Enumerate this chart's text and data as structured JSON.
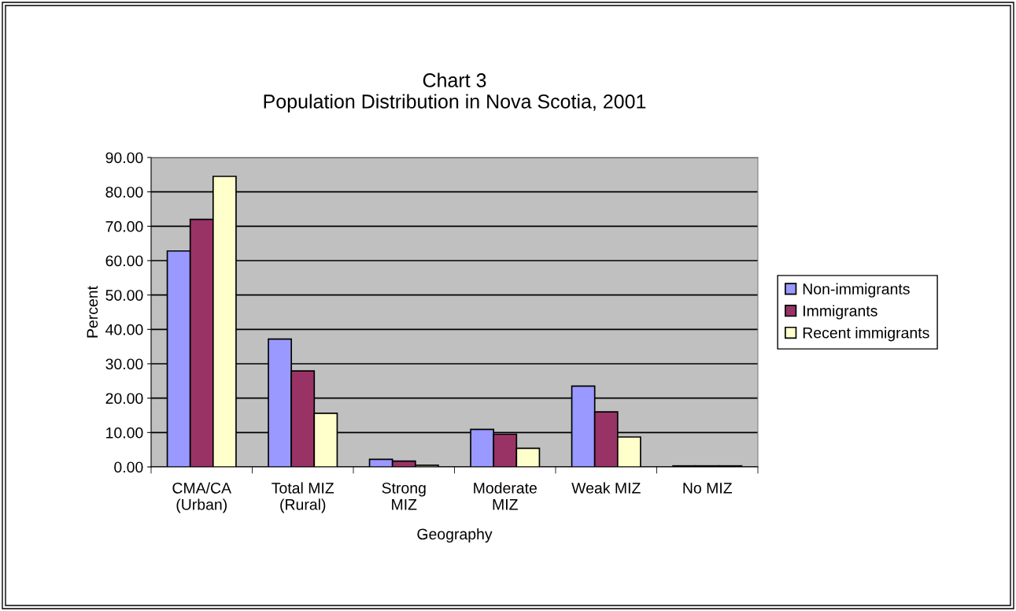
{
  "chart_data": {
    "type": "bar",
    "title": "Chart 3\nPopulation Distribution in Nova Scotia, 2001",
    "xlabel": "Geography",
    "ylabel": "Percent",
    "categories": [
      "CMA/CA\n(Urban)",
      "Total MIZ\n(Rural)",
      "Strong\nMIZ",
      "Moderate\nMIZ",
      "Weak MIZ",
      "No MIZ"
    ],
    "series": [
      {
        "name": "Non-immigrants",
        "color": "#9999ff",
        "values": [
          62.8,
          37.2,
          2.2,
          10.9,
          23.5,
          0.3
        ]
      },
      {
        "name": "Immigrants",
        "color": "#993366",
        "values": [
          72.0,
          27.9,
          1.7,
          9.5,
          16.0,
          0.3
        ]
      },
      {
        "name": "Recent immigrants",
        "color": "#ffffcc",
        "values": [
          84.5,
          15.6,
          0.5,
          5.4,
          8.7,
          0.3
        ]
      }
    ],
    "ylim": [
      0,
      90
    ],
    "yticks": [
      {
        "value": 0,
        "label": "0.00"
      },
      {
        "value": 10,
        "label": "10.00"
      },
      {
        "value": 20,
        "label": "20.00"
      },
      {
        "value": 30,
        "label": "30.00"
      },
      {
        "value": 40,
        "label": "40.00"
      },
      {
        "value": 50,
        "label": "50.00"
      },
      {
        "value": 60,
        "label": "60.00"
      },
      {
        "value": 70,
        "label": "70.00"
      },
      {
        "value": 80,
        "label": "80.00"
      },
      {
        "value": 90,
        "label": "90.00"
      }
    ],
    "grid": "y",
    "legend": "right"
  }
}
